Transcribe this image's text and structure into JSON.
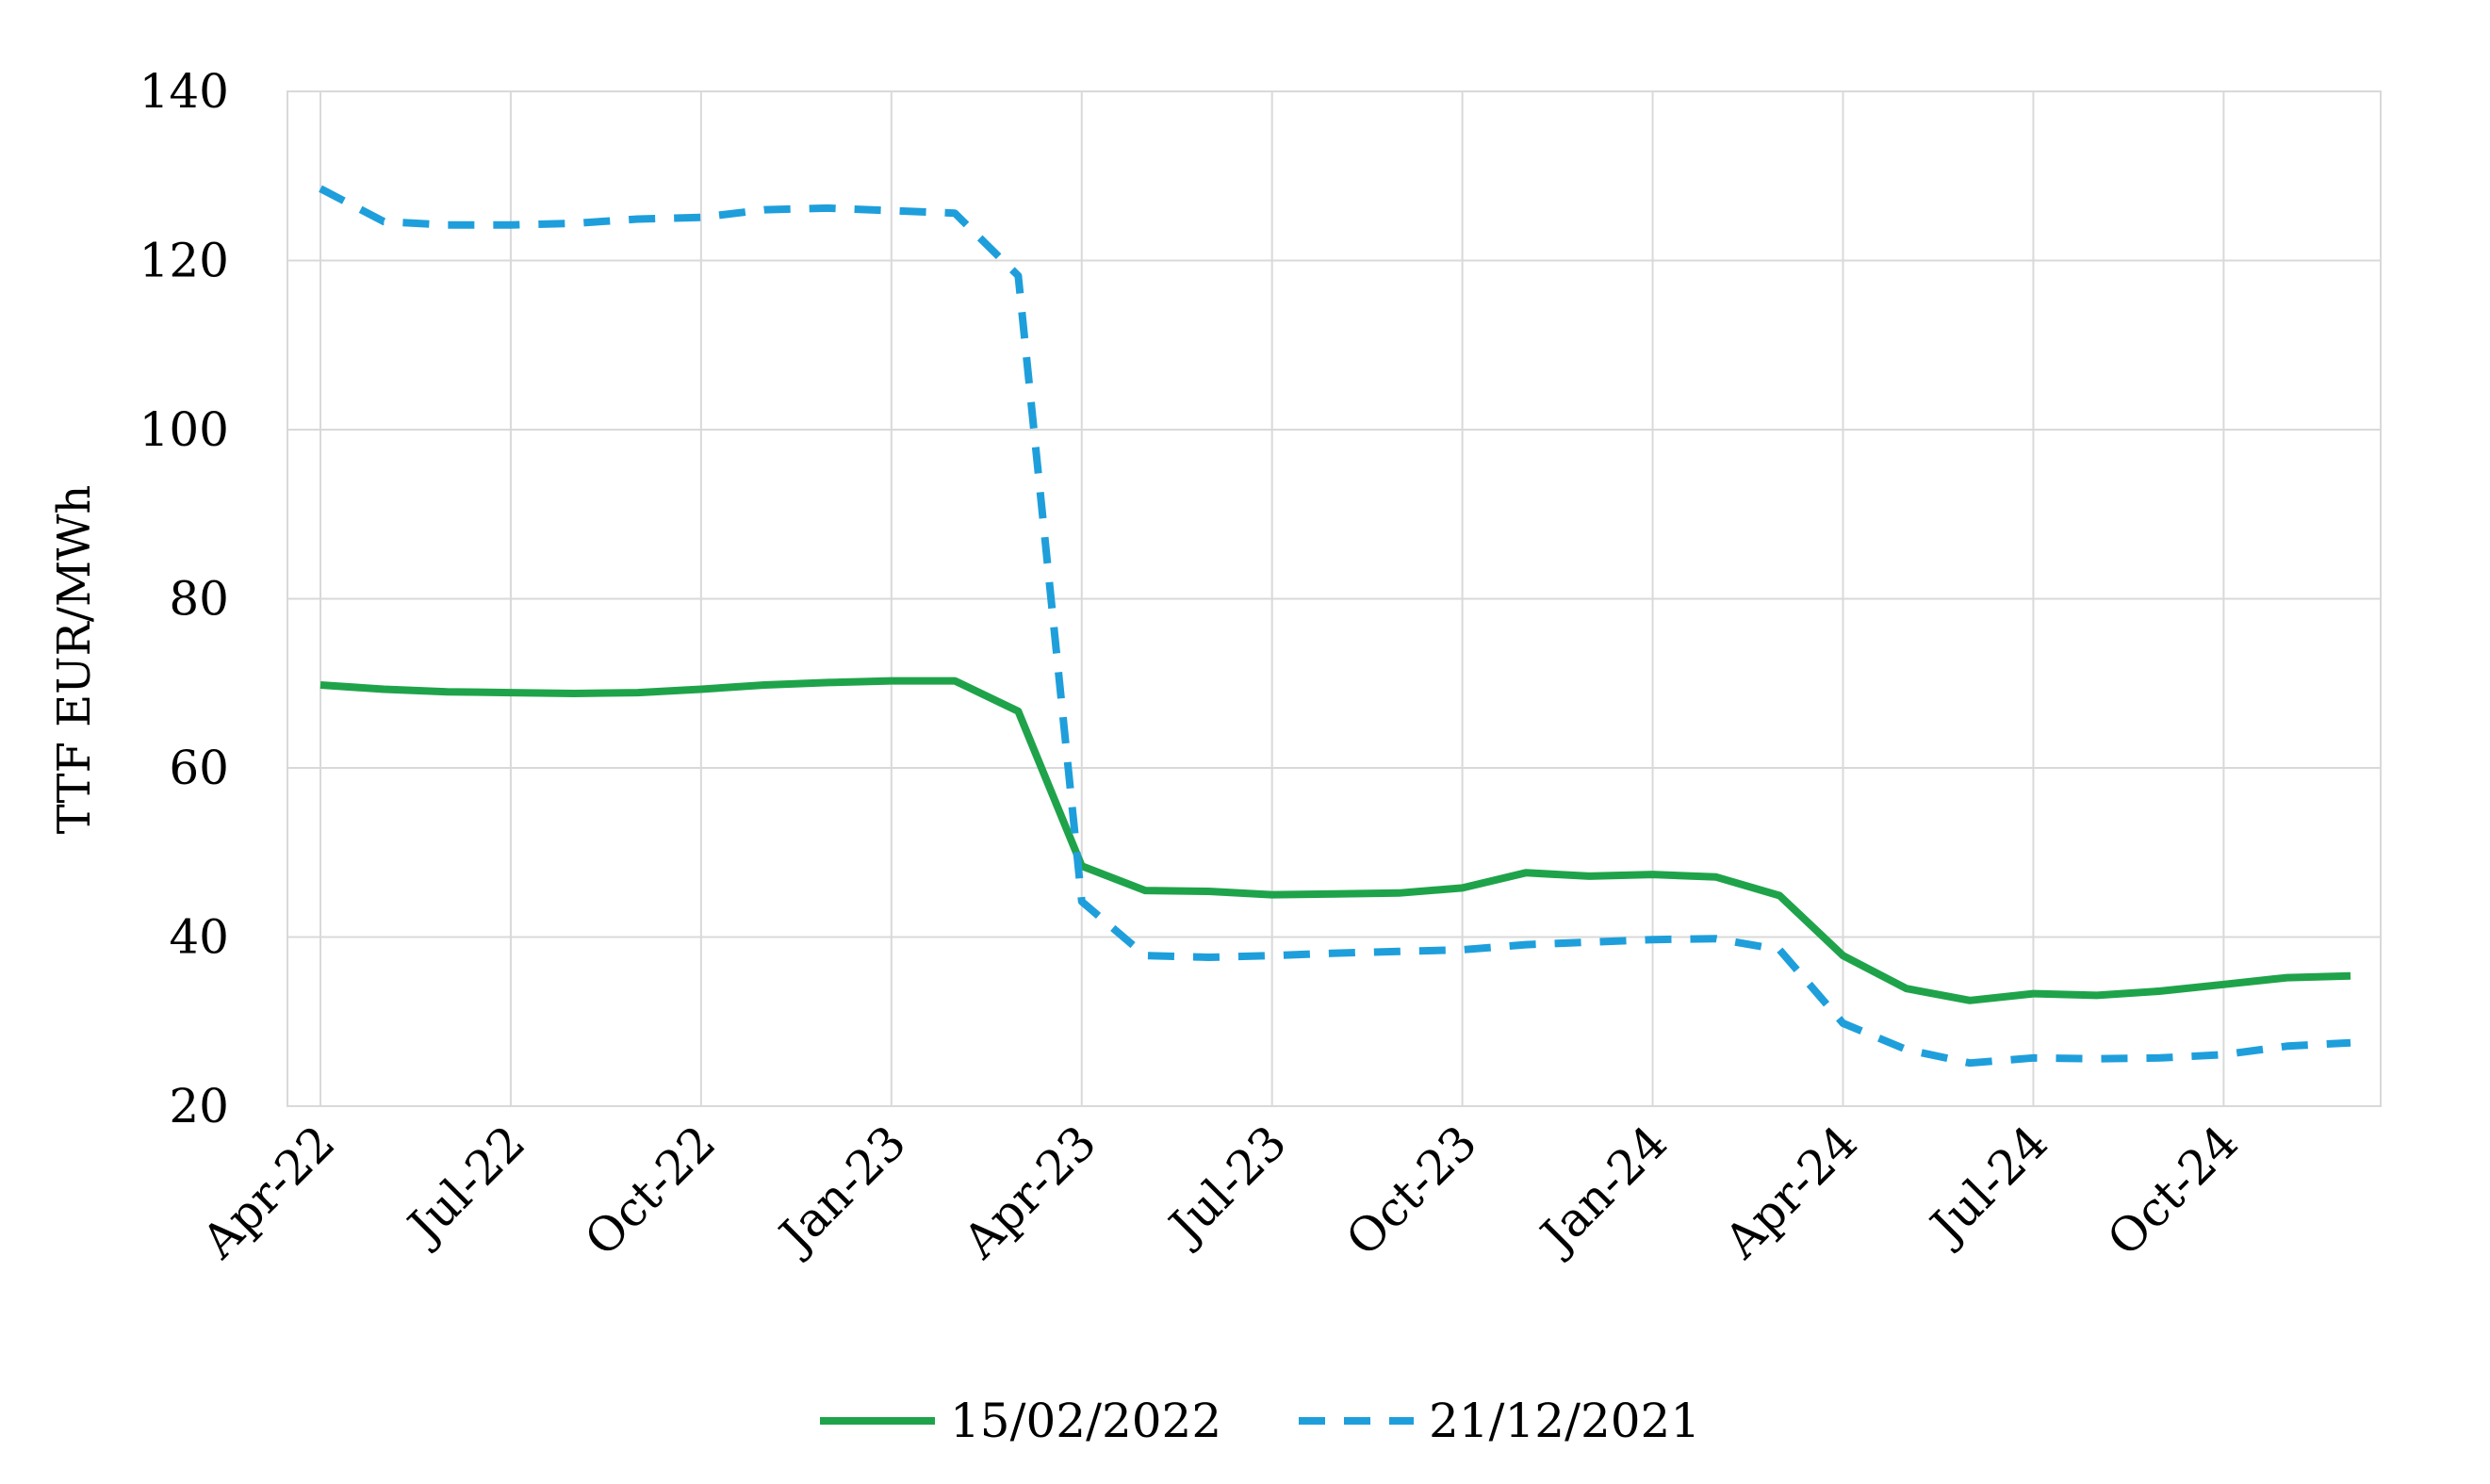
{
  "chart_data": {
    "type": "line",
    "title": "",
    "xlabel": "",
    "ylabel": "TTF EUR/MWh",
    "ylim": [
      20,
      140
    ],
    "yticks": [
      "20",
      "40",
      "60",
      "80",
      "100",
      "120",
      "140"
    ],
    "xticks": [
      "Apr-22",
      "Jul-22",
      "Oct-22",
      "Jan-23",
      "Apr-23",
      "Jul-23",
      "Oct-23",
      "Jan-24",
      "Apr-24",
      "Jul-24",
      "Oct-24"
    ],
    "x": [
      "Apr-22",
      "May-22",
      "Jun-22",
      "Jul-22",
      "Aug-22",
      "Sep-22",
      "Oct-22",
      "Nov-22",
      "Dec-22",
      "Jan-23",
      "Feb-23",
      "Mar-23",
      "Apr-23",
      "May-23",
      "Jun-23",
      "Jul-23",
      "Aug-23",
      "Sep-23",
      "Oct-23",
      "Nov-23",
      "Dec-23",
      "Jan-24",
      "Feb-24",
      "Mar-24",
      "Apr-24",
      "May-24",
      "Jun-24",
      "Jul-24",
      "Aug-24",
      "Sep-24",
      "Oct-24",
      "Nov-24",
      "Dec-24"
    ],
    "grid": true,
    "legend_position": "bottom",
    "series": [
      {
        "name": "15/02/2022",
        "color": "#1fa34a",
        "style": "solid",
        "values": [
          69.8,
          69.3,
          69.0,
          68.9,
          68.8,
          68.9,
          69.3,
          69.8,
          70.1,
          70.3,
          70.3,
          66.7,
          48.4,
          45.5,
          45.4,
          45.0,
          45.1,
          45.2,
          45.8,
          47.6,
          47.2,
          47.4,
          47.1,
          44.9,
          37.8,
          33.9,
          32.5,
          33.3,
          33.1,
          33.6,
          34.4,
          35.2,
          35.4
        ]
      },
      {
        "name": "21/12/2021",
        "color": "#1e9fdb",
        "style": "dashed",
        "values": [
          128.5,
          124.6,
          124.2,
          124.2,
          124.4,
          124.9,
          125.1,
          126.0,
          126.2,
          125.9,
          125.6,
          118.2,
          44.2,
          37.8,
          37.6,
          37.8,
          38.1,
          38.3,
          38.5,
          39.1,
          39.4,
          39.7,
          39.8,
          38.5,
          29.8,
          26.7,
          25.1,
          25.7,
          25.6,
          25.7,
          26.1,
          27.1,
          27.5
        ]
      }
    ]
  }
}
